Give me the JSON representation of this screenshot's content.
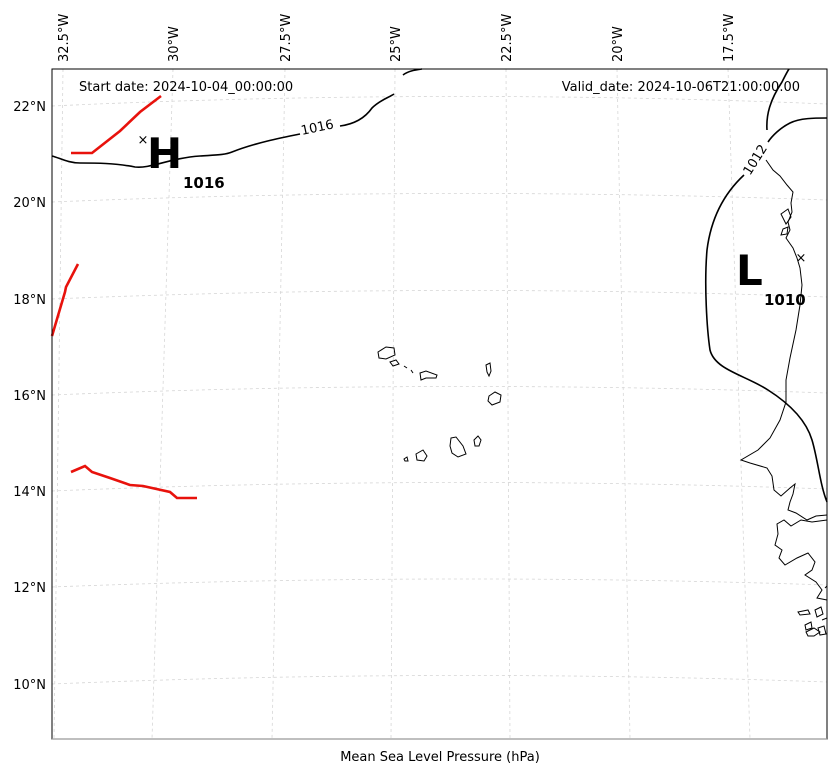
{
  "map": {
    "caption": "Mean Sea Level Pressure (hPa)",
    "start_date": "Start date: 2024-10-04_00:00:00",
    "valid_date": "Valid_date: 2024-10-06T21:00:00.00",
    "lon_labels": [
      "32.5°W",
      "30°W",
      "27.5°W",
      "25°W",
      "22.5°W",
      "20°W",
      "17.5°W"
    ],
    "lat_labels": [
      "22°N",
      "20°N",
      "18°N",
      "16°N",
      "14°N",
      "12°N",
      "10°N"
    ],
    "high": {
      "letter": "H",
      "value": "1016"
    },
    "low": {
      "letter": "L",
      "value": "1010"
    },
    "isobar_labels": [
      "1016",
      "1012"
    ],
    "front_color": "#e8120c"
  }
}
